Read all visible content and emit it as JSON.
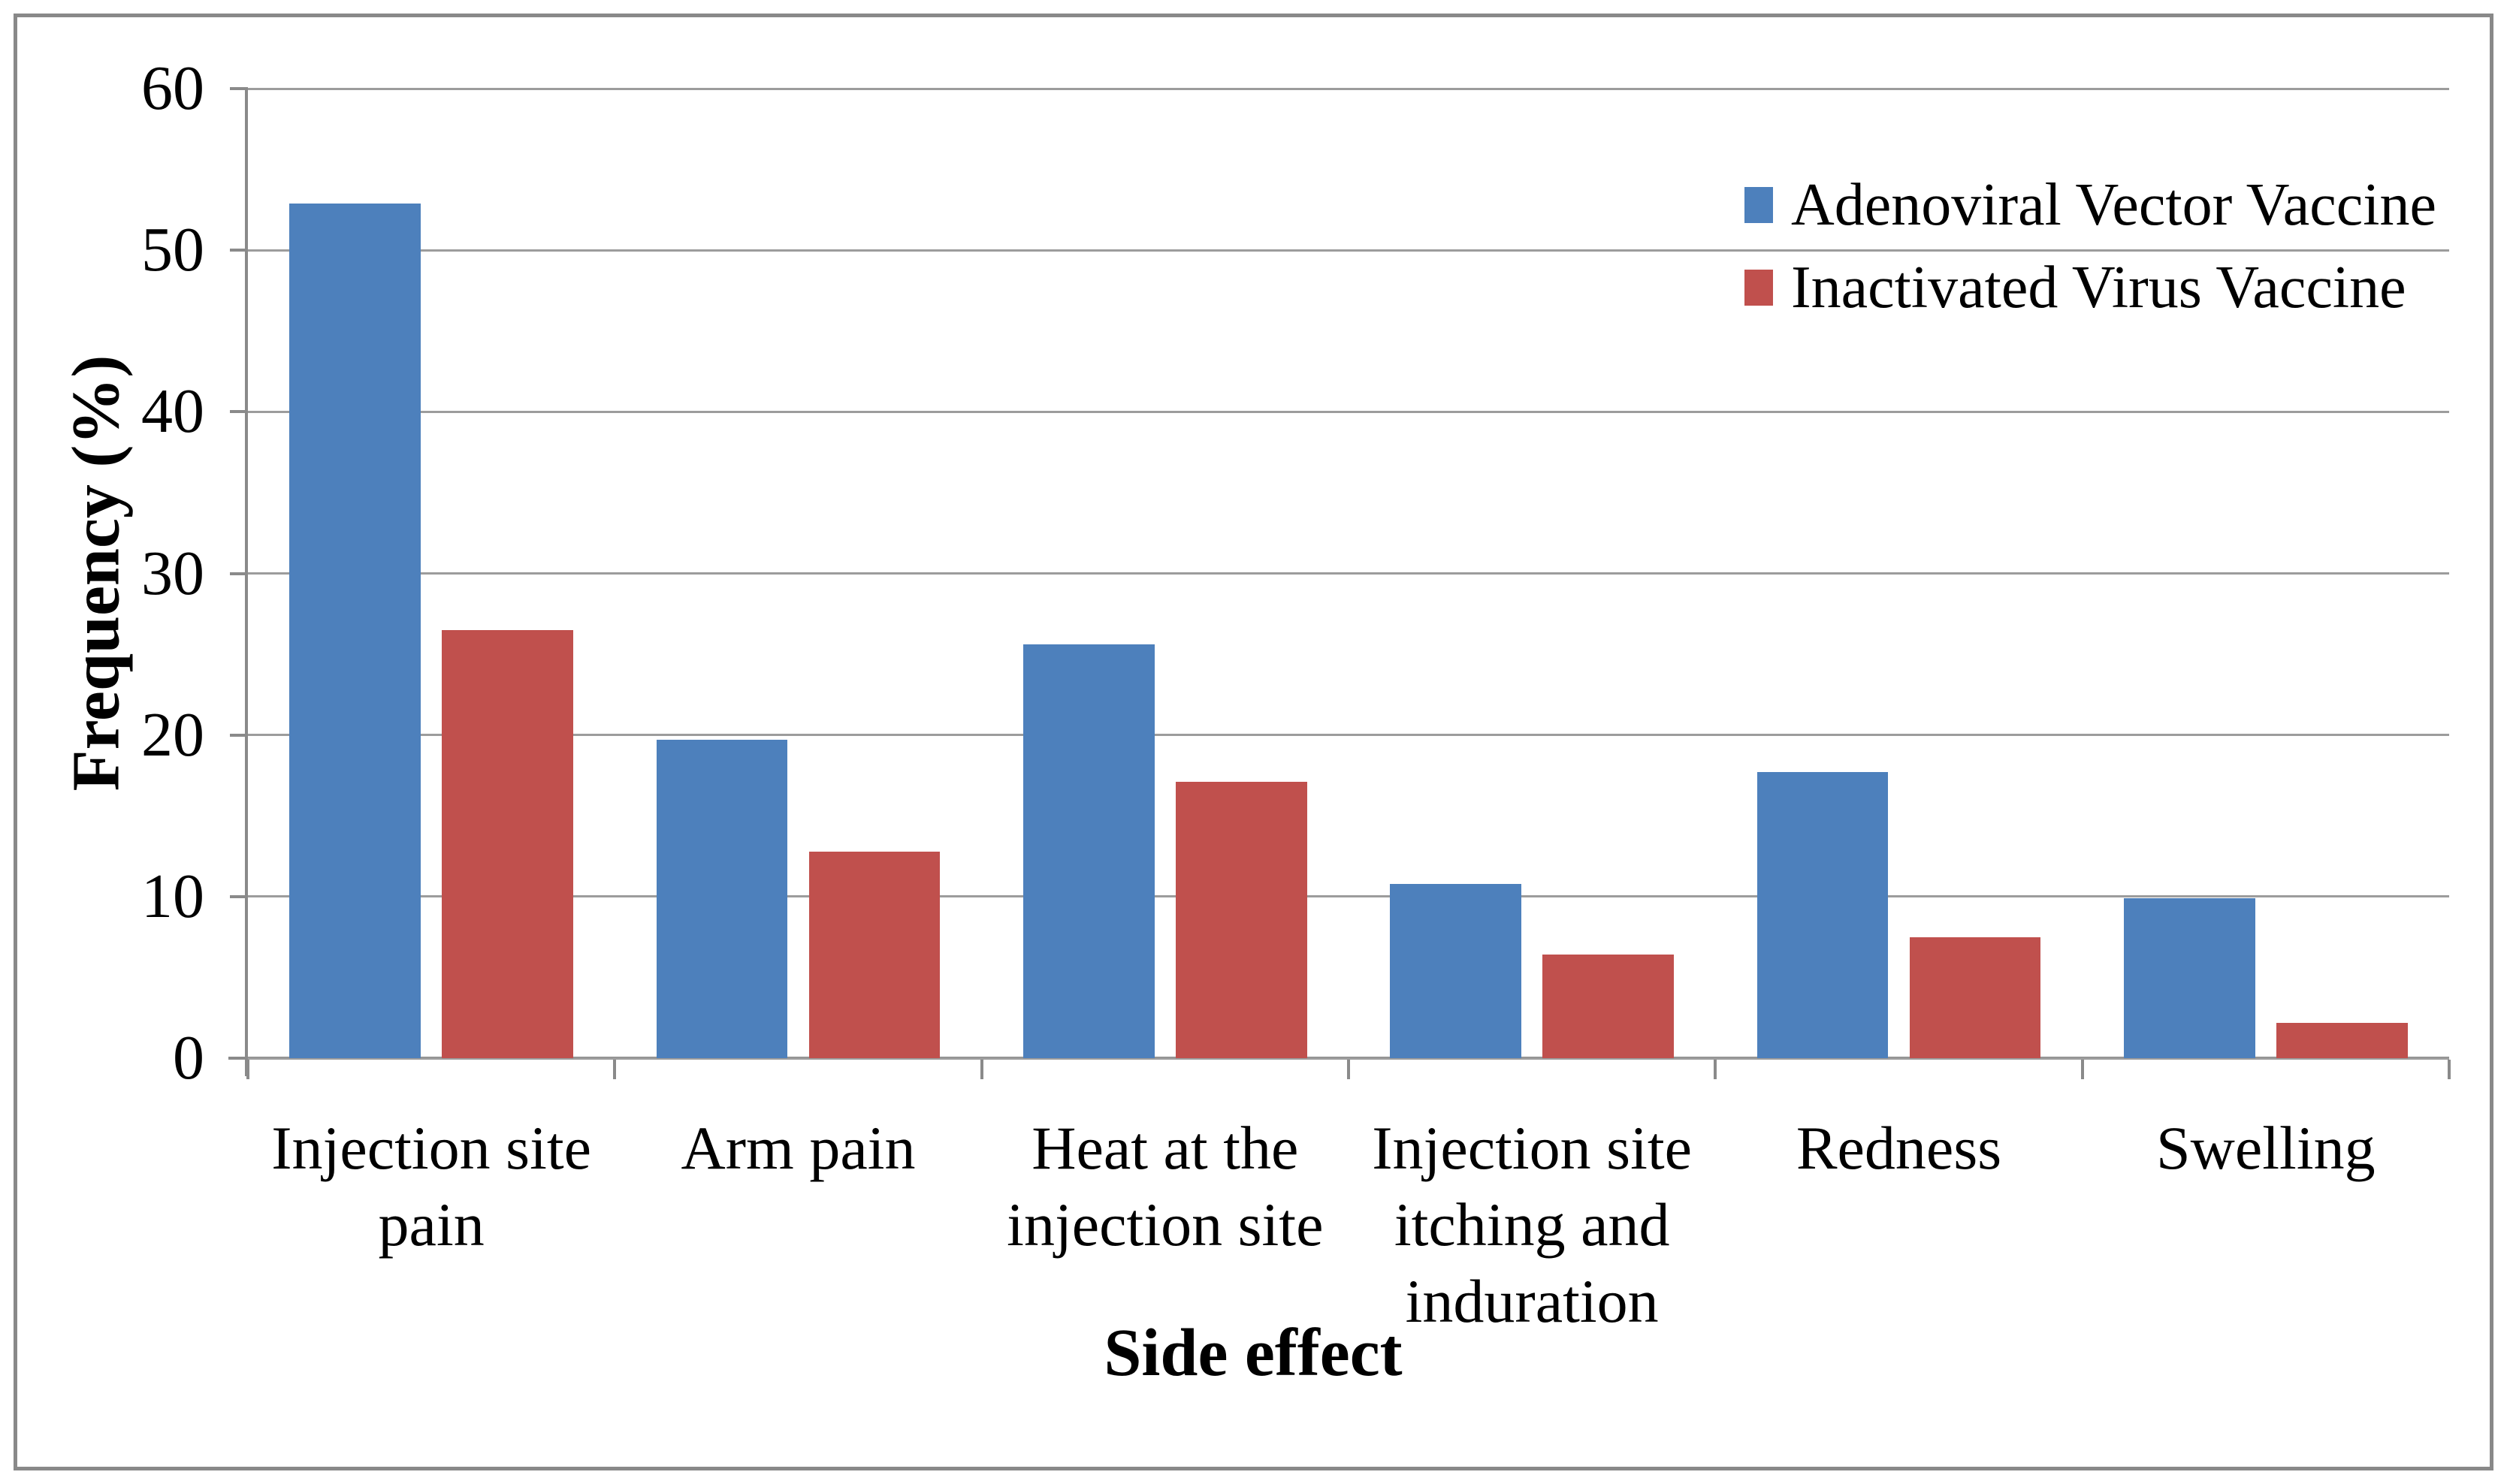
{
  "chart_data": {
    "type": "bar",
    "title": "",
    "categories": [
      "Injection site pain",
      "Arm pain",
      "Heat at the injection site",
      "Injection site itching and induration",
      "Redness",
      "Swelling"
    ],
    "category_label_lines": [
      [
        "Injection site",
        "pain"
      ],
      [
        "Arm pain"
      ],
      [
        "Heat at the",
        "injection site"
      ],
      [
        "Injection site",
        "itching and",
        "induration"
      ],
      [
        "Redness"
      ],
      [
        "Swelling"
      ]
    ],
    "series": [
      {
        "name": "Adenoviral Vector Vaccine",
        "color": "#4d80bc",
        "values": [
          52.9,
          19.7,
          25.6,
          10.8,
          17.7,
          9.9
        ]
      },
      {
        "name": "Inactivated Virus Vaccine",
        "color": "#c0504d",
        "values": [
          26.5,
          12.8,
          17.1,
          6.4,
          7.5,
          2.2
        ]
      }
    ],
    "xlabel": "Side effect",
    "ylabel": "Frequency (%)",
    "ylim": [
      0,
      60
    ],
    "ytick_step": 10,
    "ytick_labels": [
      "0",
      "10",
      "20",
      "30",
      "40",
      "50",
      "60"
    ],
    "grid": true,
    "legend_position": "top-right",
    "colors": {
      "gridline": "#9c9c9c",
      "axis": "#8a8a8a",
      "frame_border": "#898989",
      "background": "#ffffff",
      "text": "#000000"
    }
  }
}
